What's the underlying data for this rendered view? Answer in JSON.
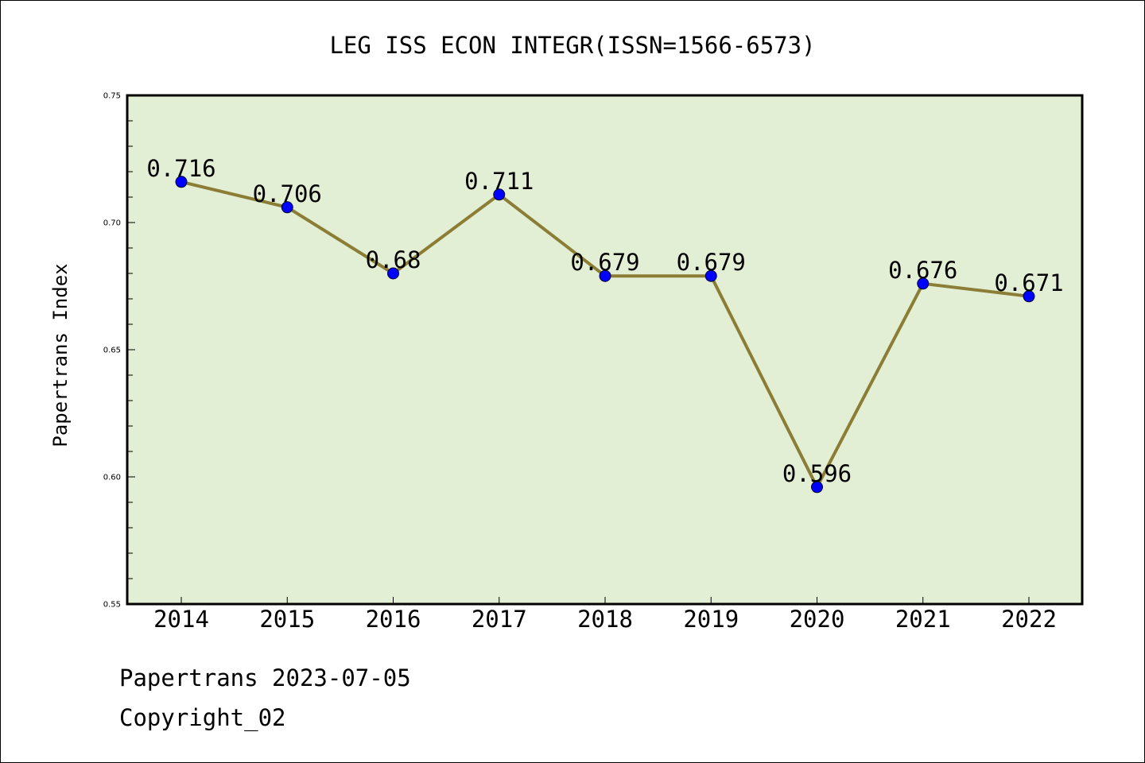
{
  "chart_data": {
    "type": "line",
    "title": "LEG ISS ECON INTEGR(ISSN=1566-6573)",
    "xlabel": "",
    "ylabel": "Papertrans Index",
    "categories": [
      "2014",
      "2015",
      "2016",
      "2017",
      "2018",
      "2019",
      "2020",
      "2021",
      "2022"
    ],
    "values": [
      0.716,
      0.706,
      0.68,
      0.711,
      0.679,
      0.679,
      0.596,
      0.676,
      0.671
    ],
    "data_labels": [
      "0.716",
      "0.706",
      "0.68",
      "0.711",
      "0.679",
      "0.679",
      "0.596",
      "0.676",
      "0.671"
    ],
    "ylim": [
      0.55,
      0.75
    ],
    "yticks": [
      "0.55",
      "0.60",
      "0.65",
      "0.70",
      "0.75"
    ],
    "grid": false,
    "colors": {
      "plot_background": "#e2efd4",
      "line": "#8b7d35",
      "marker": "#0000ff",
      "axes": "#000000"
    }
  },
  "footer": {
    "line1": "Papertrans 2023-07-05",
    "line2": "Copyright_02"
  }
}
